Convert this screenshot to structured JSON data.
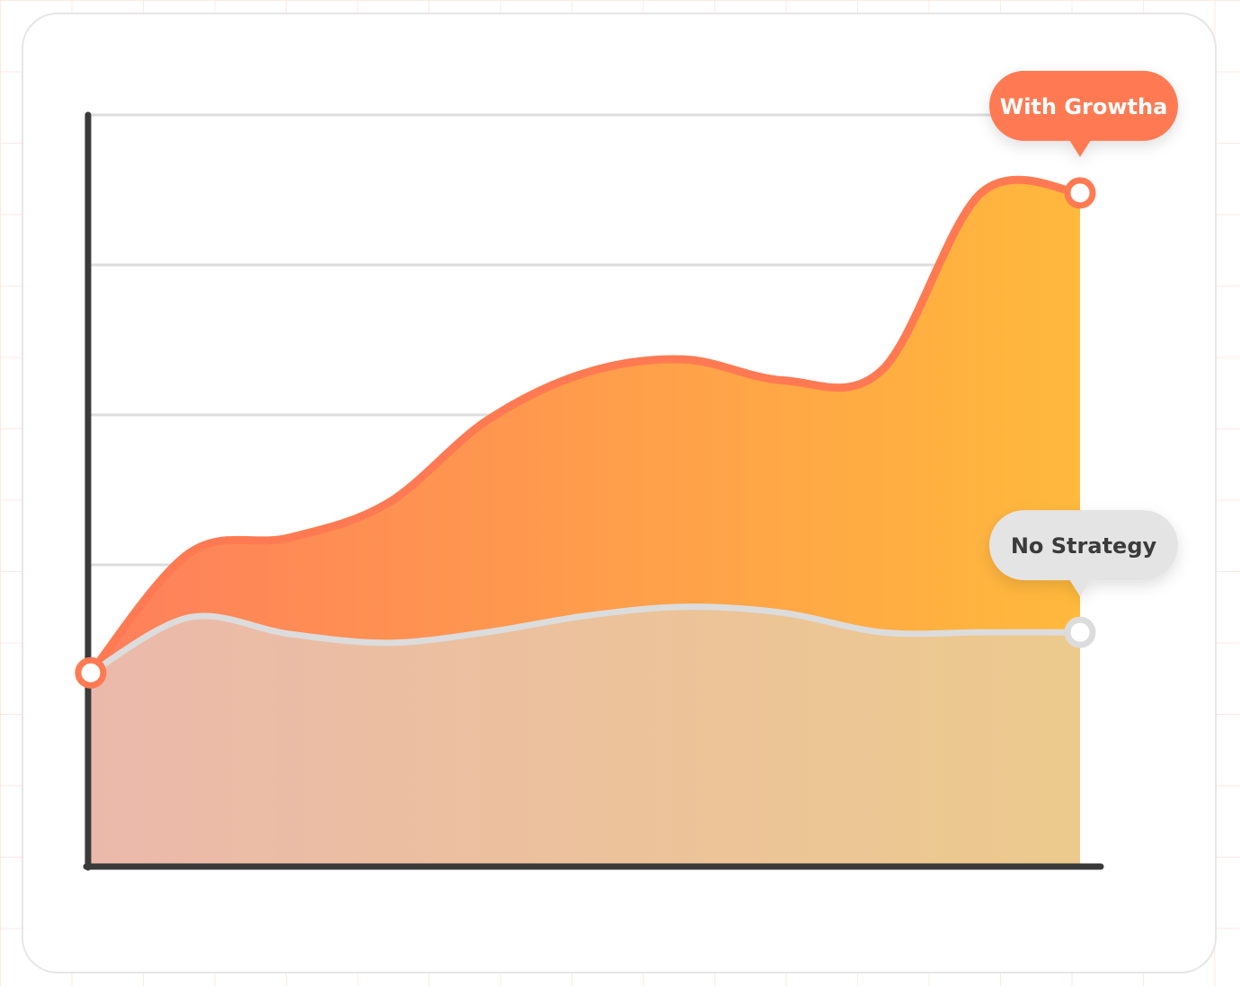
{
  "chart_data": {
    "type": "area",
    "title": "",
    "xlabel": "",
    "ylabel": "",
    "grid": true,
    "x": [
      0,
      1,
      2,
      3,
      4,
      5,
      6,
      7,
      8,
      9,
      10
    ],
    "ylim": [
      0,
      5
    ],
    "series": [
      {
        "name": "With Growtha",
        "color": "#ff7a52",
        "values": [
          1.28,
          2.08,
          2.18,
          2.41,
          2.96,
          3.28,
          3.37,
          3.23,
          3.3,
          4.48,
          4.48
        ],
        "end_marker": true
      },
      {
        "name": "No Strategy",
        "color": "#dcdcdc",
        "values": [
          1.28,
          1.65,
          1.54,
          1.48,
          1.55,
          1.66,
          1.72,
          1.68,
          1.55,
          1.55,
          1.55
        ],
        "end_marker": true
      }
    ],
    "colors": {
      "grid": "#dddddd",
      "axis": "#3a3a3a",
      "fill_start": "#ff7f5c",
      "fill_end": "#ffb93c",
      "low_fill_start": "#ebb9ab",
      "low_fill_end": "#ecca8d"
    }
  }
}
